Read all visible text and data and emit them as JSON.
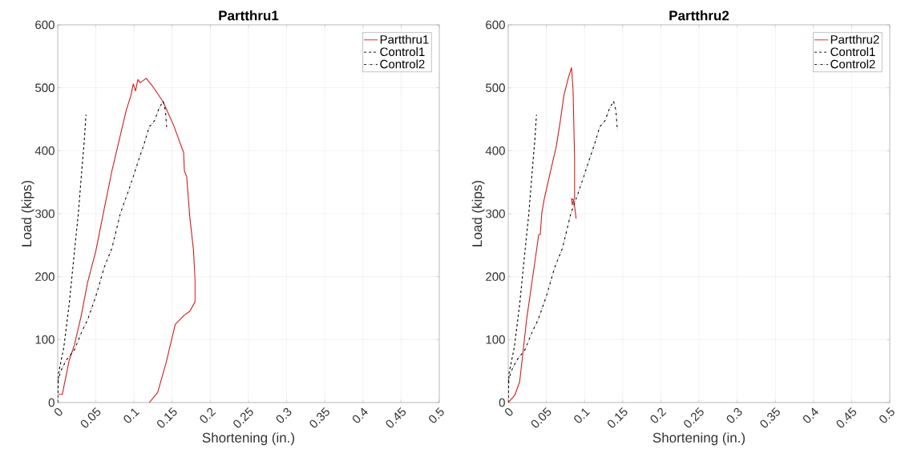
{
  "chart_data": [
    {
      "type": "line",
      "title": "Partthru1",
      "xlabel": "Shortening (in.)",
      "ylabel": "Load (kips)",
      "xlim": [
        0,
        0.5
      ],
      "xticks": [
        0,
        0.05,
        0.1,
        0.15,
        0.2,
        0.25,
        0.3,
        0.35,
        0.4,
        0.45,
        0.5
      ],
      "ylim": [
        0,
        600
      ],
      "yticks": [
        0,
        100,
        200,
        300,
        400,
        500,
        600
      ],
      "grid": true,
      "legend": "top right",
      "marker": "none",
      "series": [
        {
          "name": "Partthru1",
          "color": "#d01c1c",
          "line_style": "solid",
          "x": [
            0.001,
            0.006,
            0.008,
            0.015,
            0.022,
            0.031,
            0.039,
            0.05,
            0.061,
            0.071,
            0.08,
            0.09,
            0.096,
            0.099,
            0.102,
            0.105,
            0.108,
            0.116,
            0.124,
            0.138,
            0.152,
            0.165,
            0.166,
            0.169,
            0.173,
            0.178,
            0.18,
            0.18,
            0.173,
            0.166,
            0.154,
            0.142,
            0.131,
            0.12
          ],
          "values": [
            13,
            13,
            25,
            67,
            92,
            139,
            190,
            241,
            308,
            368,
            414,
            465,
            488,
            506,
            495,
            513,
            508,
            515,
            503,
            478,
            440,
            397,
            368,
            359,
            296,
            241,
            194,
            160,
            145,
            139,
            124,
            63,
            16,
            0
          ]
        },
        {
          "name": "Control1",
          "color": "#000000",
          "line_style": "dashed",
          "x": [
            0,
            0.001,
            0.008,
            0.015,
            0.022,
            0.027,
            0.032,
            0.035,
            0.037
          ],
          "values": [
            0,
            46,
            88,
            156,
            241,
            300,
            376,
            419,
            457
          ]
        },
        {
          "name": "Control2",
          "color": "#000000",
          "line_style": "dashdot",
          "x": [
            0,
            0.004,
            0.011,
            0.022,
            0.032,
            0.039,
            0.05,
            0.061,
            0.071,
            0.082,
            0.092,
            0.099,
            0.106,
            0.113,
            0.12,
            0.127,
            0.132,
            0.138,
            0.141,
            0.143
          ],
          "values": [
            33,
            50,
            67,
            84,
            114,
            131,
            169,
            215,
            245,
            300,
            334,
            359,
            385,
            410,
            438,
            448,
            465,
            479,
            465,
            434
          ]
        }
      ]
    },
    {
      "type": "line",
      "title": "Partthru2",
      "xlabel": "Shortening (in.)",
      "ylabel": "Load (kips)",
      "xlim": [
        0,
        0.5
      ],
      "xticks": [
        0,
        0.05,
        0.1,
        0.15,
        0.2,
        0.25,
        0.3,
        0.35,
        0.4,
        0.45,
        0.5
      ],
      "ylim": [
        0,
        600
      ],
      "yticks": [
        0,
        100,
        200,
        300,
        400,
        500,
        600
      ],
      "grid": true,
      "legend": "top right",
      "marker": "none",
      "series": [
        {
          "name": "Partthru2",
          "color": "#d01c1c",
          "line_style": "solid",
          "x": [
            0,
            0.0087,
            0.015,
            0.019,
            0.024,
            0.03,
            0.035,
            0.04,
            0.042,
            0.044,
            0.047,
            0.054,
            0.059,
            0.063,
            0.068,
            0.073,
            0.079,
            0.083,
            0.085,
            0.087,
            0.087,
            0.084,
            0.083,
            0.086,
            0.089
          ],
          "values": [
            0,
            12,
            33,
            76,
            131,
            182,
            224,
            267,
            267,
            301,
            322,
            360,
            386,
            407,
            445,
            488,
            517,
            532,
            496,
            386,
            326,
            314,
            324,
            321,
            292
          ]
        },
        {
          "name": "Control1",
          "color": "#000000",
          "line_style": "dashed",
          "x": [
            0,
            0.001,
            0.008,
            0.015,
            0.022,
            0.027,
            0.032,
            0.035,
            0.037
          ],
          "values": [
            0,
            46,
            88,
            156,
            241,
            300,
            376,
            419,
            457
          ]
        },
        {
          "name": "Control2",
          "color": "#000000",
          "line_style": "dashdot",
          "x": [
            0,
            0.004,
            0.011,
            0.022,
            0.032,
            0.039,
            0.05,
            0.061,
            0.071,
            0.082,
            0.092,
            0.099,
            0.106,
            0.113,
            0.12,
            0.127,
            0.132,
            0.138,
            0.141,
            0.143
          ],
          "values": [
            33,
            50,
            67,
            84,
            114,
            131,
            169,
            215,
            245,
            300,
            334,
            359,
            385,
            410,
            438,
            448,
            465,
            479,
            465,
            434
          ]
        }
      ]
    }
  ]
}
